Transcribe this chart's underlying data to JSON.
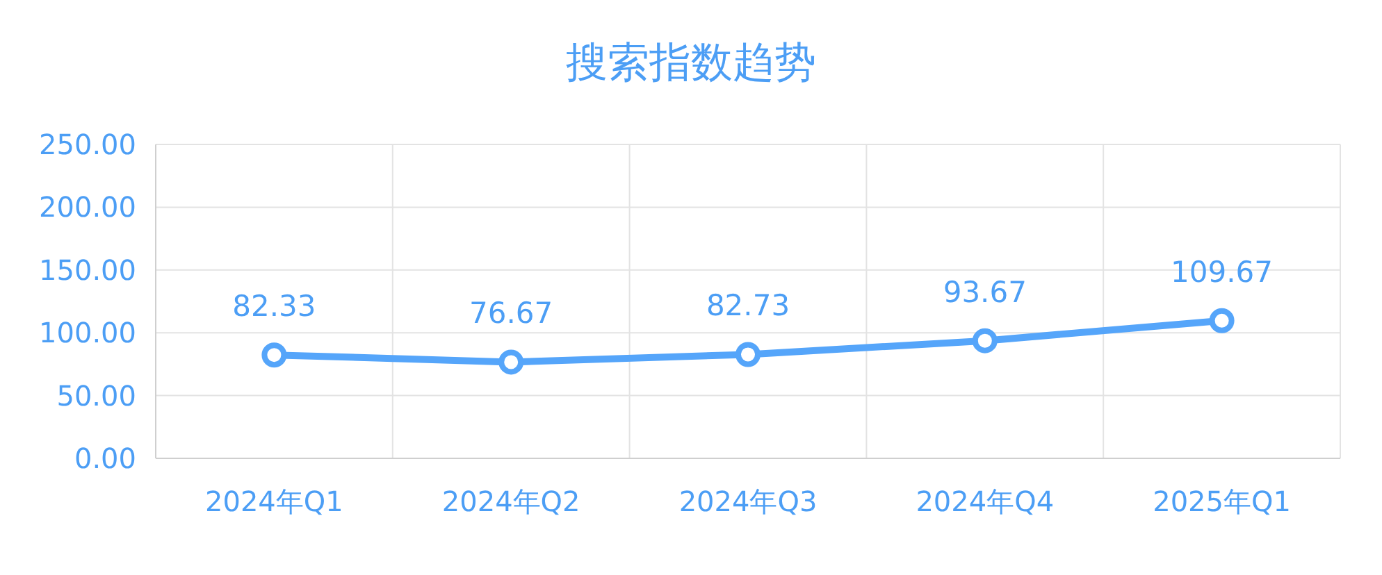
{
  "chart_data": {
    "type": "line",
    "title": "搜索指数趋势",
    "categories": [
      "2024年Q1",
      "2024年Q2",
      "2024年Q3",
      "2024年Q4",
      "2025年Q1"
    ],
    "series": [
      {
        "color": "#55a5fa",
        "values": [
          82.33,
          76.67,
          82.73,
          93.67,
          109.67
        ]
      }
    ],
    "ylim": [
      0,
      250
    ],
    "yticks": [
      {
        "value": 0,
        "label": "0.00"
      },
      {
        "value": 50,
        "label": "50.00"
      },
      {
        "value": 100,
        "label": "100.00"
      },
      {
        "value": 150,
        "label": "150.00"
      },
      {
        "value": 200,
        "label": "200.00"
      },
      {
        "value": 250,
        "label": "250.00"
      }
    ],
    "grid": true,
    "marker": "circle",
    "line_style": "solid",
    "data_labels": true
  }
}
